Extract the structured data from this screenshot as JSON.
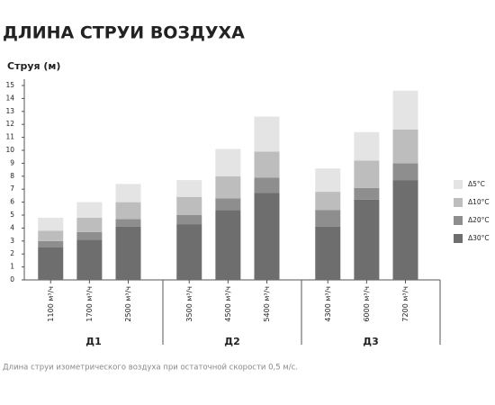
{
  "chart_data": {
    "type": "stacked_bar",
    "title": "ДЛИНА СТРУИ ВОЗДУХА",
    "y_label": "Струя (м)",
    "caption": "Длина струи изометрического воздуха при остаточной скорости 0,5 м/с.",
    "categories": [
      "1100 м³/ч",
      "1700 м³/ч",
      "2500 м³/ч",
      "3500 м³/ч",
      "4500 м³/ч",
      "5400 м³/ч",
      "4300 м³/ч",
      "6000 м³/ч",
      "7200 м³/ч"
    ],
    "groups": [
      "Д1",
      "Д2",
      "Д3"
    ],
    "series": [
      {
        "name": "Δ30°C",
        "color": "#6e6e6e",
        "values": [
          2.5,
          3.1,
          4.1,
          4.3,
          5.4,
          6.7,
          4.1,
          6.2,
          7.7
        ]
      },
      {
        "name": "Δ20°C",
        "color": "#8e8e8e",
        "values": [
          0.5,
          0.6,
          0.6,
          0.7,
          0.9,
          1.2,
          1.3,
          0.9,
          1.3
        ]
      },
      {
        "name": "Δ10°C",
        "color": "#bdbdbd",
        "values": [
          0.8,
          1.1,
          1.3,
          1.4,
          1.7,
          2.0,
          1.4,
          2.1,
          2.6
        ]
      },
      {
        "name": "Δ5°C",
        "color": "#e4e4e4",
        "values": [
          1.0,
          1.2,
          1.4,
          1.3,
          2.1,
          2.7,
          1.8,
          2.2,
          3.0
        ]
      }
    ],
    "ylim": [
      0,
      15
    ],
    "yticks": [
      0,
      1,
      2,
      3,
      4,
      5,
      6,
      7,
      8,
      9,
      10,
      11,
      12,
      13,
      14,
      15
    ],
    "legend": "right"
  }
}
